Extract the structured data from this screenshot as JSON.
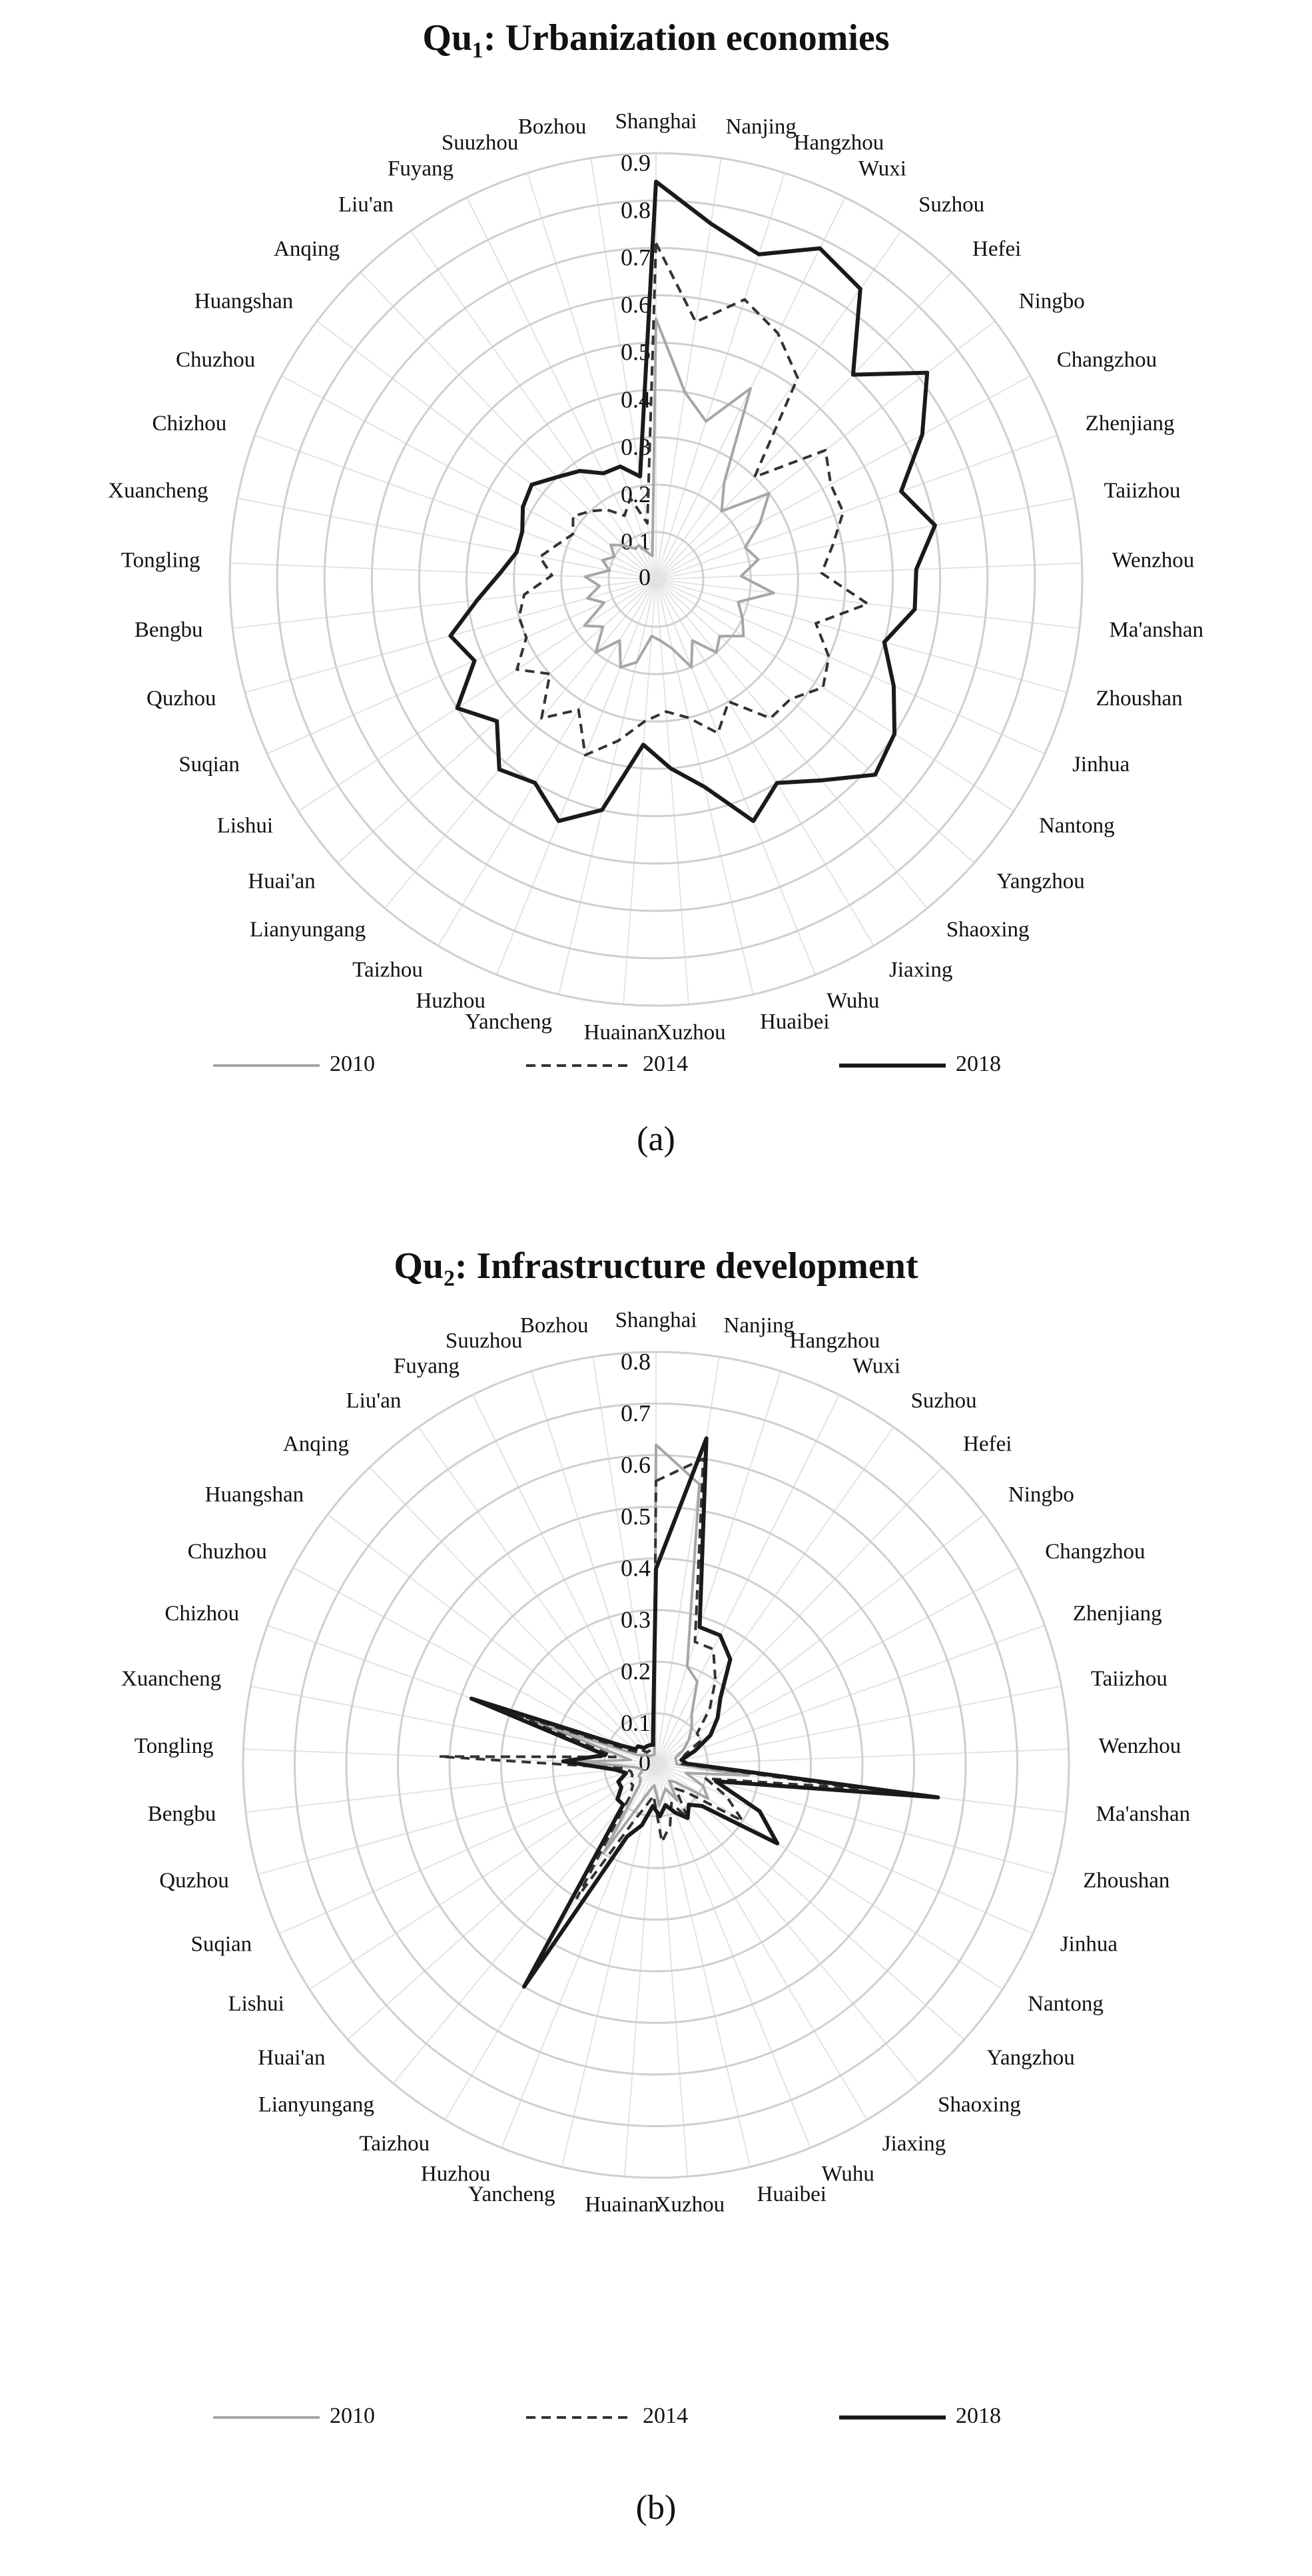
{
  "chart_data": [
    {
      "type": "radar",
      "title": "Qu₁: Urbanization economies",
      "caption": "(a)",
      "categories": [
        "Shanghai",
        "Nanjing",
        "Hangzhou",
        "Wuxi",
        "Suzhou",
        "Hefei",
        "Ningbo",
        "Changzhou",
        "Zhenjiang",
        "Taiizhou",
        "Wenzhou",
        "Ma'anshan",
        "Zhoushan",
        "Jinhua",
        "Nantong",
        "Yangzhou",
        "Shaoxing",
        "Jiaxing",
        "Wuhu",
        "Huaibei",
        "Xuzhou",
        "Huainan",
        "Yancheng",
        "Huzhou",
        "Taizhou",
        "Lianyungang",
        "Huai'an",
        "Lishui",
        "Suqian",
        "Quzhou",
        "Bengbu",
        "Tongling",
        "Xuancheng",
        "Chizhou",
        "Chuzhou",
        "Huangshan",
        "Anqing",
        "Liu'an",
        "Fuyang",
        "Suuzhou",
        "Bozhou"
      ],
      "ylim": [
        0,
        0.9
      ],
      "yticks": [
        0,
        0.1,
        0.2,
        0.3,
        0.4,
        0.5,
        0.6,
        0.7,
        0.8,
        0.9
      ],
      "grid": true,
      "series": [
        {
          "name": "2010",
          "color": "#a6a6a6",
          "line_style": "solid",
          "values": [
            0.55,
            0.4,
            0.35,
            0.45,
            0.25,
            0.2,
            0.3,
            0.25,
            0.2,
            0.22,
            0.18,
            0.25,
            0.18,
            0.2,
            0.22,
            0.18,
            0.2,
            0.15,
            0.2,
            0.15,
            0.13,
            0.12,
            0.18,
            0.2,
            0.15,
            0.2,
            0.15,
            0.18,
            0.12,
            0.15,
            0.12,
            0.15,
            0.1,
            0.12,
            0.1,
            0.12,
            0.1,
            0.08,
            0.08,
            0.06,
            0.05
          ]
        },
        {
          "name": "2014",
          "color": "#333333",
          "line_style": "dashed",
          "values": [
            0.71,
            0.55,
            0.62,
            0.58,
            0.52,
            0.3,
            0.45,
            0.42,
            0.42,
            0.38,
            0.35,
            0.45,
            0.35,
            0.4,
            0.42,
            0.38,
            0.38,
            0.3,
            0.35,
            0.3,
            0.28,
            0.3,
            0.35,
            0.4,
            0.32,
            0.38,
            0.3,
            0.35,
            0.3,
            0.3,
            0.28,
            0.22,
            0.25,
            0.22,
            0.2,
            0.22,
            0.2,
            0.18,
            0.15,
            0.18,
            0.12
          ]
        },
        {
          "name": "2018",
          "color": "#1a1a1a",
          "line_style": "solid",
          "values": [
            0.84,
            0.76,
            0.72,
            0.78,
            0.75,
            0.6,
            0.72,
            0.64,
            0.55,
            0.6,
            0.55,
            0.55,
            0.5,
            0.55,
            0.6,
            0.62,
            0.55,
            0.5,
            0.55,
            0.45,
            0.4,
            0.35,
            0.5,
            0.55,
            0.5,
            0.52,
            0.45,
            0.5,
            0.42,
            0.45,
            0.38,
            0.33,
            0.3,
            0.3,
            0.32,
            0.33,
            0.3,
            0.28,
            0.25,
            0.25,
            0.22
          ]
        }
      ]
    },
    {
      "type": "radar",
      "title": "Qu₂: Infrastructure development",
      "caption": "(b)",
      "categories": [
        "Shanghai",
        "Nanjing",
        "Hangzhou",
        "Wuxi",
        "Suzhou",
        "Hefei",
        "Ningbo",
        "Changzhou",
        "Zhenjiang",
        "Taiizhou",
        "Wenzhou",
        "Ma'anshan",
        "Zhoushan",
        "Jinhua",
        "Nantong",
        "Yangzhou",
        "Shaoxing",
        "Jiaxing",
        "Wuhu",
        "Huaibei",
        "Xuzhou",
        "Huainan",
        "Yancheng",
        "Huzhou",
        "Taizhou",
        "Lianyungang",
        "Huai'an",
        "Lishui",
        "Suqian",
        "Quzhou",
        "Bengbu",
        "Tongling",
        "Xuancheng",
        "Chizhou",
        "Chuzhou",
        "Huangshan",
        "Anqing",
        "Liu'an",
        "Fuyang",
        "Suuzhou",
        "Bozhou"
      ],
      "ylim": [
        0,
        0.8
      ],
      "yticks": [
        0,
        0.1,
        0.2,
        0.3,
        0.4,
        0.5,
        0.6,
        0.7,
        0.8
      ],
      "grid": true,
      "series": [
        {
          "name": "2010",
          "color": "#a6a6a6",
          "line_style": "solid",
          "values": [
            0.62,
            0.55,
            0.2,
            0.18,
            0.12,
            0.1,
            0.08,
            0.06,
            0.04,
            0.04,
            0.04,
            0.18,
            0.06,
            0.1,
            0.12,
            0.05,
            0.04,
            0.08,
            0.05,
            0.06,
            0.08,
            0.04,
            0.05,
            0.08,
            0.2,
            0.05,
            0.04,
            0.04,
            0.03,
            0.03,
            0.04,
            0.15,
            0.05,
            0.25,
            0.04,
            0.03,
            0.03,
            0.02,
            0.02,
            0.02,
            0.02
          ]
        },
        {
          "name": "2014",
          "color": "#333333",
          "line_style": "dashed",
          "values": [
            0.55,
            0.6,
            0.25,
            0.25,
            0.2,
            0.15,
            0.1,
            0.1,
            0.06,
            0.05,
            0.05,
            0.4,
            0.1,
            0.15,
            0.2,
            0.08,
            0.06,
            0.12,
            0.08,
            0.12,
            0.15,
            0.06,
            0.08,
            0.12,
            0.3,
            0.08,
            0.06,
            0.06,
            0.05,
            0.05,
            0.06,
            0.42,
            0.08,
            0.3,
            0.06,
            0.04,
            0.04,
            0.03,
            0.03,
            0.03,
            0.03
          ]
        },
        {
          "name": "2018",
          "color": "#1a1a1a",
          "line_style": "solid",
          "values": [
            0.38,
            0.64,
            0.28,
            0.28,
            0.25,
            0.18,
            0.15,
            0.12,
            0.08,
            0.05,
            0.06,
            0.55,
            0.12,
            0.22,
            0.28,
            0.12,
            0.1,
            0.12,
            0.1,
            0.08,
            0.1,
            0.08,
            0.12,
            0.15,
            0.5,
            0.1,
            0.1,
            0.08,
            0.08,
            0.06,
            0.08,
            0.18,
            0.1,
            0.38,
            0.08,
            0.05,
            0.05,
            0.04,
            0.04,
            0.04,
            0.04
          ]
        }
      ]
    }
  ]
}
